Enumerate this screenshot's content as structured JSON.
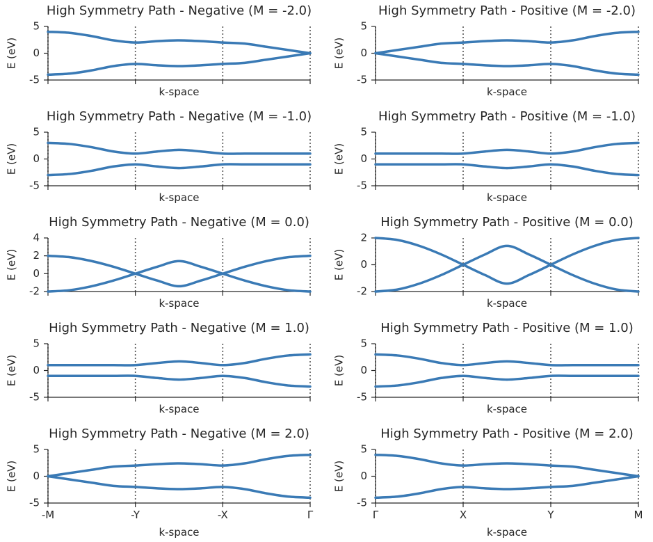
{
  "style": {
    "line_color": "#3a7ab5",
    "axis_color": "#262626"
  },
  "chart_data": [
    {
      "type": "line",
      "title": "High Symmetry Path - Negative (M = -2.0)",
      "xlabel": "k-space",
      "ylabel": "E (eV)",
      "ylim": [
        -5,
        5
      ],
      "yticks": [
        "5",
        "0",
        "-5"
      ],
      "xticks": [
        "-M",
        "-Y",
        "-X",
        "Γ"
      ],
      "show_xticklabels": false,
      "x": [
        0,
        1,
        2,
        3,
        4,
        5,
        6,
        7,
        8,
        9,
        10,
        11,
        12
      ],
      "series": [
        {
          "values": [
            4.0,
            3.8,
            3.2,
            2.4,
            2.0,
            2.25,
            2.4,
            2.25,
            2.0,
            1.8,
            1.2,
            0.6,
            0.0
          ]
        },
        {
          "values": [
            -4.0,
            -3.8,
            -3.2,
            -2.4,
            -2.0,
            -2.25,
            -2.4,
            -2.25,
            -2.0,
            -1.8,
            -1.2,
            -0.6,
            0.0
          ]
        }
      ]
    },
    {
      "type": "line",
      "title": "High Symmetry Path - Positive (M = -2.0)",
      "xlabel": "k-space",
      "ylabel": "E (eV)",
      "ylim": [
        -5,
        5
      ],
      "yticks": [
        "5",
        "0",
        "-5"
      ],
      "xticks": [
        "Γ",
        "X",
        "Y",
        "M"
      ],
      "show_xticklabels": false,
      "x": [
        0,
        1,
        2,
        3,
        4,
        5,
        6,
        7,
        8,
        9,
        10,
        11,
        12
      ],
      "series": [
        {
          "values": [
            0.0,
            0.6,
            1.2,
            1.8,
            2.0,
            2.25,
            2.4,
            2.25,
            2.0,
            2.4,
            3.2,
            3.8,
            4.0
          ]
        },
        {
          "values": [
            0.0,
            -0.6,
            -1.2,
            -1.8,
            -2.0,
            -2.25,
            -2.4,
            -2.25,
            -2.0,
            -2.4,
            -3.2,
            -3.8,
            -4.0
          ]
        }
      ]
    },
    {
      "type": "line",
      "title": "High Symmetry Path - Negative (M = -1.0)",
      "xlabel": "k-space",
      "ylabel": "E (eV)",
      "ylim": [
        -5,
        5
      ],
      "yticks": [
        "5",
        "0",
        "-5"
      ],
      "xticks": [
        "-M",
        "-Y",
        "-X",
        "Γ"
      ],
      "show_xticklabels": false,
      "x": [
        0,
        1,
        2,
        3,
        4,
        5,
        6,
        7,
        8,
        9,
        10,
        11,
        12
      ],
      "series": [
        {
          "values": [
            3.0,
            2.8,
            2.2,
            1.4,
            1.0,
            1.4,
            1.7,
            1.4,
            1.0,
            1.0,
            1.0,
            1.0,
            1.0
          ]
        },
        {
          "values": [
            -3.0,
            -2.8,
            -2.2,
            -1.4,
            -1.0,
            -1.4,
            -1.7,
            -1.4,
            -1.0,
            -1.0,
            -1.0,
            -1.0,
            -1.0
          ]
        }
      ]
    },
    {
      "type": "line",
      "title": "High Symmetry Path - Positive (M = -1.0)",
      "xlabel": "k-space",
      "ylabel": "E (eV)",
      "ylim": [
        -5,
        5
      ],
      "yticks": [
        "5",
        "0",
        "-5"
      ],
      "xticks": [
        "Γ",
        "X",
        "Y",
        "M"
      ],
      "show_xticklabels": false,
      "x": [
        0,
        1,
        2,
        3,
        4,
        5,
        6,
        7,
        8,
        9,
        10,
        11,
        12
      ],
      "series": [
        {
          "values": [
            1.0,
            1.0,
            1.0,
            1.0,
            1.0,
            1.4,
            1.7,
            1.4,
            1.0,
            1.4,
            2.2,
            2.8,
            3.0
          ]
        },
        {
          "values": [
            -1.0,
            -1.0,
            -1.0,
            -1.0,
            -1.0,
            -1.4,
            -1.7,
            -1.4,
            -1.0,
            -1.4,
            -2.2,
            -2.8,
            -3.0
          ]
        }
      ]
    },
    {
      "type": "line",
      "title": "High Symmetry Path - Negative (M = 0.0)",
      "xlabel": "k-space",
      "ylabel": "E (eV)",
      "ylim": [
        -2,
        4
      ],
      "yticks": [
        "4",
        "2",
        "0",
        "-2"
      ],
      "xticks": [
        "-M",
        "-Y",
        "-X",
        "Γ"
      ],
      "show_xticklabels": false,
      "x": [
        0,
        1,
        2,
        3,
        4,
        5,
        6,
        7,
        8,
        9,
        10,
        11,
        12
      ],
      "series": [
        {
          "values": [
            2.0,
            1.85,
            1.41,
            0.77,
            0.0,
            -0.77,
            -1.41,
            -0.77,
            0.0,
            0.77,
            1.41,
            1.85,
            2.0
          ]
        },
        {
          "values": [
            -2.0,
            -1.85,
            -1.41,
            -0.77,
            0.0,
            0.77,
            1.41,
            0.77,
            0.0,
            -0.77,
            -1.41,
            -1.85,
            -2.0
          ]
        }
      ]
    },
    {
      "type": "line",
      "title": "High Symmetry Path - Positive (M = 0.0)",
      "xlabel": "k-space",
      "ylabel": "E (eV)",
      "ylim": [
        -2,
        2
      ],
      "yticks": [
        "2",
        "0",
        "-2"
      ],
      "xticks": [
        "Γ",
        "X",
        "Y",
        "M"
      ],
      "show_xticklabels": false,
      "x": [
        0,
        1,
        2,
        3,
        4,
        5,
        6,
        7,
        8,
        9,
        10,
        11,
        12
      ],
      "series": [
        {
          "values": [
            2.0,
            1.85,
            1.41,
            0.77,
            0.0,
            -0.77,
            -1.41,
            -0.77,
            0.0,
            0.77,
            1.41,
            1.85,
            2.0
          ]
        },
        {
          "values": [
            -2.0,
            -1.85,
            -1.41,
            -0.77,
            0.0,
            0.77,
            1.41,
            0.77,
            0.0,
            -0.77,
            -1.41,
            -1.85,
            -2.0
          ]
        }
      ]
    },
    {
      "type": "line",
      "title": "High Symmetry Path - Negative (M = 1.0)",
      "xlabel": "k-space",
      "ylabel": "E (eV)",
      "ylim": [
        -5,
        5
      ],
      "yticks": [
        "5",
        "0",
        "-5"
      ],
      "xticks": [
        "-M",
        "-Y",
        "-X",
        "Γ"
      ],
      "show_xticklabels": false,
      "x": [
        0,
        1,
        2,
        3,
        4,
        5,
        6,
        7,
        8,
        9,
        10,
        11,
        12
      ],
      "series": [
        {
          "values": [
            1.0,
            1.0,
            1.0,
            1.0,
            1.0,
            1.4,
            1.7,
            1.4,
            1.0,
            1.4,
            2.2,
            2.8,
            3.0
          ]
        },
        {
          "values": [
            -1.0,
            -1.0,
            -1.0,
            -1.0,
            -1.0,
            -1.4,
            -1.7,
            -1.4,
            -1.0,
            -1.4,
            -2.2,
            -2.8,
            -3.0
          ]
        }
      ]
    },
    {
      "type": "line",
      "title": "High Symmetry Path - Positive (M = 1.0)",
      "xlabel": "k-space",
      "ylabel": "E (eV)",
      "ylim": [
        -5,
        5
      ],
      "yticks": [
        "5",
        "0",
        "-5"
      ],
      "xticks": [
        "Γ",
        "X",
        "Y",
        "M"
      ],
      "show_xticklabels": false,
      "x": [
        0,
        1,
        2,
        3,
        4,
        5,
        6,
        7,
        8,
        9,
        10,
        11,
        12
      ],
      "series": [
        {
          "values": [
            3.0,
            2.8,
            2.2,
            1.4,
            1.0,
            1.4,
            1.7,
            1.4,
            1.0,
            1.0,
            1.0,
            1.0,
            1.0
          ]
        },
        {
          "values": [
            -3.0,
            -2.8,
            -2.2,
            -1.4,
            -1.0,
            -1.4,
            -1.7,
            -1.4,
            -1.0,
            -1.0,
            -1.0,
            -1.0,
            -1.0
          ]
        }
      ]
    },
    {
      "type": "line",
      "title": "High Symmetry Path - Negative (M = 2.0)",
      "xlabel": "k-space",
      "ylabel": "E (eV)",
      "ylim": [
        -5,
        5
      ],
      "yticks": [
        "5",
        "0",
        "-5"
      ],
      "xticks": [
        "-M",
        "-Y",
        "-X",
        "Γ"
      ],
      "show_xticklabels": true,
      "x": [
        0,
        1,
        2,
        3,
        4,
        5,
        6,
        7,
        8,
        9,
        10,
        11,
        12
      ],
      "series": [
        {
          "values": [
            0.0,
            0.6,
            1.2,
            1.8,
            2.0,
            2.25,
            2.4,
            2.25,
            2.0,
            2.4,
            3.2,
            3.8,
            4.0
          ]
        },
        {
          "values": [
            0.0,
            -0.6,
            -1.2,
            -1.8,
            -2.0,
            -2.25,
            -2.4,
            -2.25,
            -2.0,
            -2.4,
            -3.2,
            -3.8,
            -4.0
          ]
        }
      ]
    },
    {
      "type": "line",
      "title": "High Symmetry Path - Positive (M = 2.0)",
      "xlabel": "k-space",
      "ylabel": "E (eV)",
      "ylim": [
        -5,
        5
      ],
      "yticks": [
        "5",
        "0",
        "-5"
      ],
      "xticks": [
        "Γ",
        "X",
        "Y",
        "M"
      ],
      "show_xticklabels": true,
      "x": [
        0,
        1,
        2,
        3,
        4,
        5,
        6,
        7,
        8,
        9,
        10,
        11,
        12
      ],
      "series": [
        {
          "values": [
            4.0,
            3.8,
            3.2,
            2.4,
            2.0,
            2.25,
            2.4,
            2.25,
            2.0,
            1.8,
            1.2,
            0.6,
            0.0
          ]
        },
        {
          "values": [
            -4.0,
            -3.8,
            -3.2,
            -2.4,
            -2.0,
            -2.25,
            -2.4,
            -2.25,
            -2.0,
            -1.8,
            -1.2,
            -0.6,
            0.0
          ]
        }
      ]
    }
  ]
}
